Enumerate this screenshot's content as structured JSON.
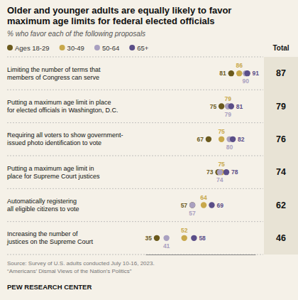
{
  "chart_data": {
    "type": "dot",
    "title": "Older and younger adults are equally likely to favor\nmaximum age limits for federal elected officials",
    "subtitle": "% who favor each of the following proposals",
    "categories": [
      "Limiting the number of terms that\nmembers of Congress can serve",
      "Putting a maximum age limit in place\nfor elected officials in Washington, D.C.",
      "Requiring all voters to show government-\nissued photo identification to vote",
      "Putting a maximum age limit in\nplace for Supreme Court justices",
      "Automatically registering\nall eligible citizens to vote",
      "Increasing the number of\njustices on the Supreme Court"
    ],
    "series": [
      {
        "name": "Ages 18-29",
        "color": "#6b5a1d",
        "values": [
          81,
          75,
          67,
          73,
          57,
          35
        ]
      },
      {
        "name": "30-49",
        "color": "#c8a84b",
        "values": [
          86,
          79,
          75,
          75,
          64,
          52
        ]
      },
      {
        "name": "50-64",
        "color": "#a9a0c0",
        "values": [
          90,
          79,
          80,
          74,
          57,
          41
        ]
      },
      {
        "name": "65+",
        "color": "#5a4e88",
        "values": [
          91,
          81,
          82,
          78,
          69,
          58
        ]
      }
    ],
    "total_label": "Total",
    "totals": [
      87,
      79,
      76,
      74,
      62,
      46
    ],
    "xlim": [
      28,
      96
    ],
    "tick_labels": false,
    "data_labels": true,
    "source": "Source: Survey of U.S. adults conducted July 10-16, 2023.\n“Americans’ Dismal Views of the Nation’s Politics”",
    "footer": "PEW RESEARCH CENTER"
  }
}
